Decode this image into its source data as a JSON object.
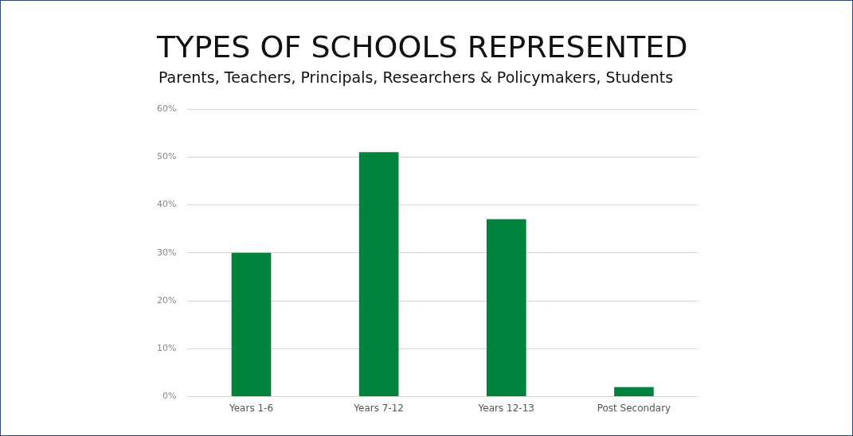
{
  "chart_data": {
    "type": "bar",
    "title": "TYPES OF SCHOOLS REPRESENTED",
    "subtitle": "Parents, Teachers, Principals, Researchers & Policymakers, Students",
    "categories": [
      "Years 1-6",
      "Years 7-12",
      "Years 12-13",
      "Post Secondary"
    ],
    "values": [
      30,
      51,
      37,
      2
    ],
    "color": "#00843d",
    "ylim": [
      0,
      60
    ],
    "yticks": [
      {
        "value": 0,
        "label": "0%"
      },
      {
        "value": 10,
        "label": "10%"
      },
      {
        "value": 20,
        "label": "20%"
      },
      {
        "value": 30,
        "label": "30%"
      },
      {
        "value": 40,
        "label": "40%"
      },
      {
        "value": 50,
        "label": "50%"
      },
      {
        "value": 60,
        "label": "60%"
      }
    ],
    "grid": "y",
    "legend": false
  }
}
